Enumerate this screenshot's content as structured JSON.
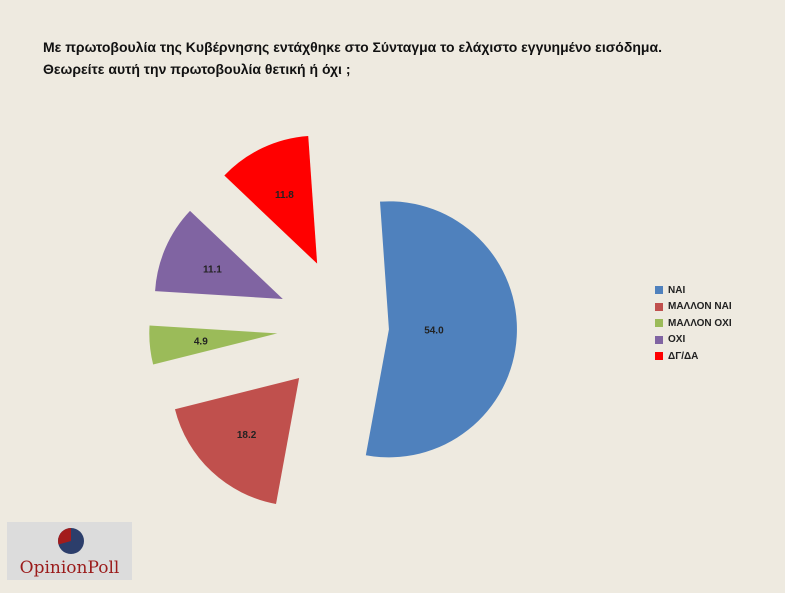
{
  "title": {
    "line1": "Με πρωτοβουλία της Κυβέρνησης εντάχθηκε στο Σύνταγμα το ελάχιστο εγγυημένο εισόδημα.",
    "line2": "Θεωρείτε αυτή την πρωτοβουλία θετική ή όχι ;"
  },
  "chart_data": {
    "type": "pie",
    "exploded": true,
    "legend_position": "right",
    "slices": [
      {
        "label": "ΝΑΙ",
        "value": 54.0,
        "value_label": "54.0",
        "color": "#4f81bd"
      },
      {
        "label": "ΜΑΛΛΟΝ ΝΑΙ",
        "value": 18.2,
        "value_label": "18.2",
        "color": "#c0504d"
      },
      {
        "label": "ΜΑΛΛΟΝ ΟΧΙ",
        "value": 4.9,
        "value_label": "4.9",
        "color": "#9bbb59"
      },
      {
        "label": "ΟΧΙ",
        "value": 11.1,
        "value_label": "11.1",
        "color": "#8064a2"
      },
      {
        "label": "ΔΓ/ΔΑ",
        "value": 11.8,
        "value_label": "11.8",
        "color": "#ff0000"
      }
    ]
  },
  "logo": {
    "text": "OpinionPoll",
    "colors": {
      "red": "#a31c1c",
      "navy": "#2c3e6b"
    }
  }
}
